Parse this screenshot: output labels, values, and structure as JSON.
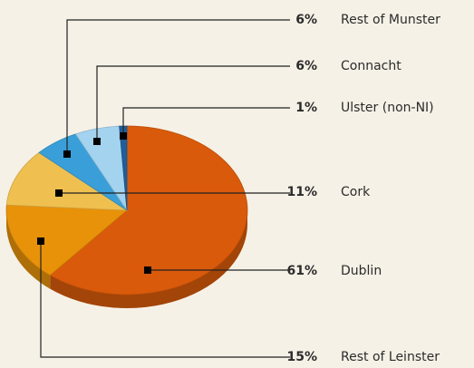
{
  "chart_data": {
    "type": "pie",
    "categories": [
      "Dublin",
      "Rest of Leinster",
      "Cork",
      "Rest of Munster",
      "Connacht",
      "Ulster (non-NI)"
    ],
    "values": [
      61,
      15,
      11,
      6,
      6,
      1
    ],
    "value_labels": [
      "61%",
      "15%",
      "11%",
      "6%",
      "6%",
      "1%"
    ],
    "colors": [
      "#d95a0b",
      "#e8920a",
      "#efc050",
      "#3a9fd8",
      "#a3d3ef",
      "#1f5e9a"
    ]
  }
}
